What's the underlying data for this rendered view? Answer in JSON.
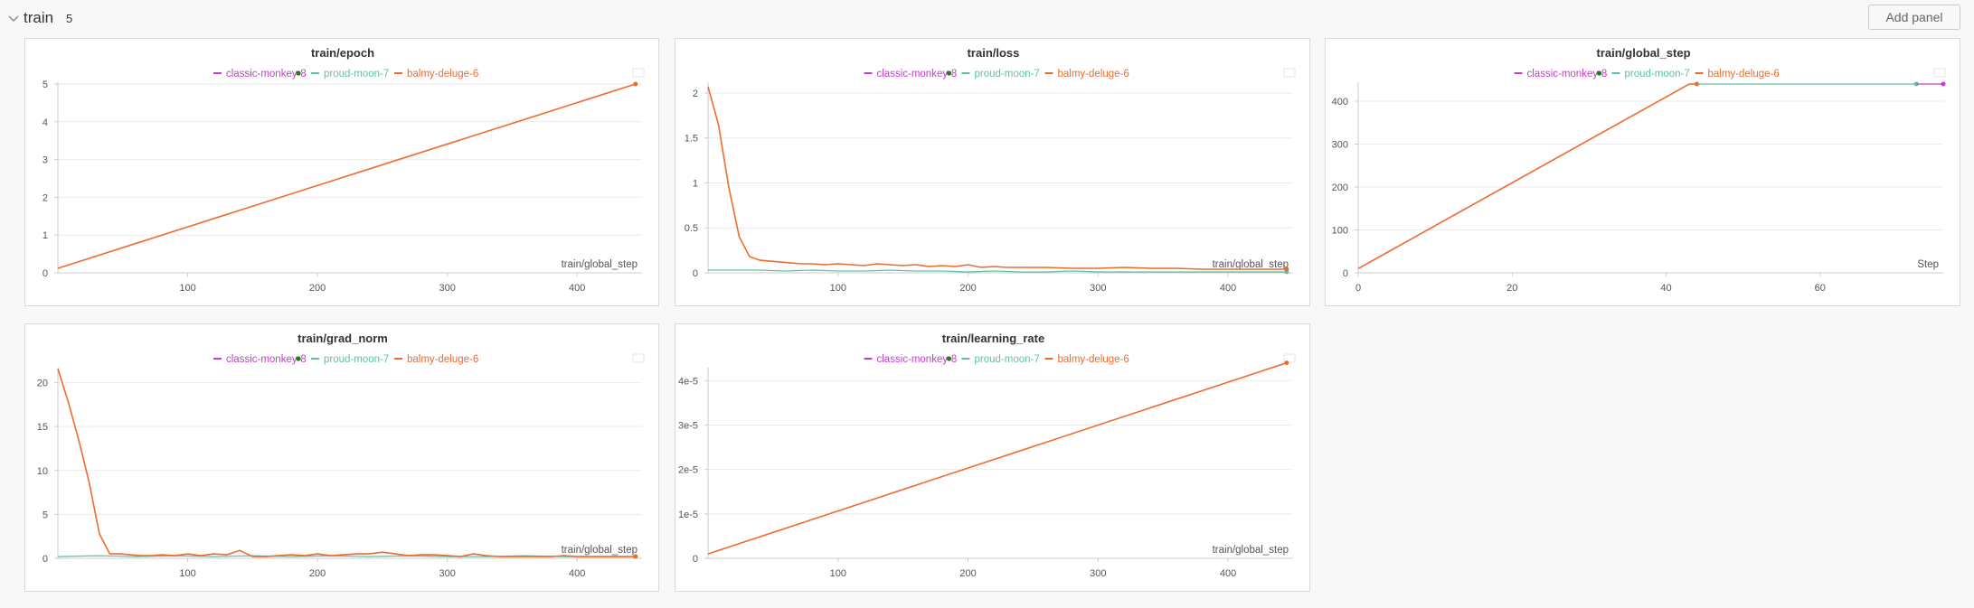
{
  "section": {
    "title": "train",
    "count": "5",
    "add_panel_label": "Add panel"
  },
  "colors": {
    "classic-monkey-8": "#c73bd1",
    "proud-moon-7": "#5fc0a8",
    "balmy-deluge-6": "#ee6b2f",
    "status_dot": "#1a7f1a"
  },
  "icons": {
    "collapse": "chevron-down-icon",
    "panel_menu": "panel-options-icon",
    "status": "running-dot-icon"
  },
  "panels": [
    {
      "title": "train/epoch",
      "legend": [
        "classic-monkey-8",
        "proud-moon-7",
        "balmy-deluge-6"
      ],
      "chart_data": {
        "type": "line",
        "xlabel": "train/global_step",
        "xlim": [
          0,
          450
        ],
        "ylim": [
          0,
          5
        ],
        "xticks": [
          100,
          200,
          300,
          400
        ],
        "yticks": [
          0,
          1,
          2,
          3,
          4,
          5
        ],
        "series": [
          {
            "name": "balmy-deluge-6",
            "x": [
              0,
              445
            ],
            "y": [
              0.12,
              5.0
            ]
          }
        ]
      }
    },
    {
      "title": "train/loss",
      "legend": [
        "classic-monkey-8",
        "proud-moon-7",
        "balmy-deluge-6"
      ],
      "chart_data": {
        "type": "line",
        "xlabel": "train/global_step",
        "xlim": [
          0,
          450
        ],
        "ylim": [
          0,
          2.1
        ],
        "xticks": [
          100,
          200,
          300,
          400
        ],
        "yticks": [
          0,
          0.5,
          1,
          1.5,
          2
        ],
        "series": [
          {
            "name": "proud-moon-7",
            "x": [
              0,
              20,
              40,
              60,
              80,
              100,
              120,
              140,
              160,
              180,
              200,
              220,
              240,
              260,
              280,
              300,
              320,
              340,
              360,
              380,
              400,
              420,
              445
            ],
            "y": [
              0.03,
              0.03,
              0.03,
              0.02,
              0.03,
              0.02,
              0.02,
              0.03,
              0.02,
              0.02,
              0.01,
              0.02,
              0.01,
              0.01,
              0.02,
              0.01,
              0.01,
              0.01,
              0.01,
              0.01,
              0.01,
              0.01,
              0.01
            ]
          },
          {
            "name": "balmy-deluge-6",
            "x": [
              0,
              8,
              16,
              24,
              32,
              40,
              48,
              56,
              64,
              72,
              80,
              90,
              100,
              110,
              120,
              130,
              140,
              150,
              160,
              170,
              180,
              190,
              200,
              210,
              220,
              230,
              240,
              260,
              280,
              300,
              320,
              340,
              360,
              380,
              400,
              420,
              445
            ],
            "y": [
              2.07,
              1.65,
              0.95,
              0.4,
              0.18,
              0.14,
              0.13,
              0.12,
              0.11,
              0.1,
              0.1,
              0.09,
              0.1,
              0.09,
              0.08,
              0.1,
              0.09,
              0.08,
              0.09,
              0.07,
              0.08,
              0.07,
              0.09,
              0.06,
              0.07,
              0.06,
              0.06,
              0.06,
              0.05,
              0.05,
              0.06,
              0.05,
              0.05,
              0.04,
              0.04,
              0.04,
              0.04
            ]
          }
        ]
      }
    },
    {
      "title": "train/global_step",
      "legend": [
        "classic-monkey-8",
        "proud-moon-7",
        "balmy-deluge-6"
      ],
      "chart_data": {
        "type": "line",
        "xlabel": "Step",
        "xlim": [
          0,
          76
        ],
        "ylim": [
          0,
          440
        ],
        "xticks": [
          0,
          20,
          40,
          60
        ],
        "yticks": [
          0,
          100,
          200,
          300,
          400
        ],
        "series": [
          {
            "name": "balmy-deluge-6",
            "x": [
              0,
              43,
              44
            ],
            "y": [
              10,
              440,
              440
            ]
          },
          {
            "name": "proud-moon-7",
            "x": [
              44,
              72.5
            ],
            "y": [
              440,
              440
            ]
          },
          {
            "name": "classic-monkey-8",
            "x": [
              72.5,
              76
            ],
            "y": [
              440,
              440
            ]
          }
        ]
      }
    },
    {
      "title": "train/grad_norm",
      "legend": [
        "classic-monkey-8",
        "proud-moon-7",
        "balmy-deluge-6"
      ],
      "chart_data": {
        "type": "line",
        "xlabel": "train/global_step",
        "xlim": [
          0,
          450
        ],
        "ylim": [
          0,
          21.5
        ],
        "xticks": [
          100,
          200,
          300,
          400
        ],
        "yticks": [
          0,
          5,
          10,
          15,
          20
        ],
        "series": [
          {
            "name": "proud-moon-7",
            "x": [
              0,
              30,
              60,
              90,
              120,
              150,
              180,
              210,
              240,
              270,
              300,
              330,
              360,
              390,
              420,
              445
            ],
            "y": [
              0.2,
              0.3,
              0.2,
              0.3,
              0.2,
              0.3,
              0.2,
              0.3,
              0.2,
              0.3,
              0.2,
              0.2,
              0.3,
              0.2,
              0.2,
              0.2
            ]
          },
          {
            "name": "balmy-deluge-6",
            "x": [
              0,
              8,
              16,
              24,
              32,
              40,
              48,
              56,
              64,
              72,
              80,
              90,
              100,
              110,
              120,
              130,
              140,
              150,
              160,
              170,
              180,
              190,
              200,
              210,
              220,
              230,
              240,
              250,
              260,
              270,
              280,
              290,
              300,
              310,
              320,
              330,
              340,
              350,
              360,
              370,
              380,
              390,
              400,
              410,
              420,
              430,
              445
            ],
            "y": [
              21.6,
              17.8,
              13.5,
              8.7,
              2.8,
              0.5,
              0.5,
              0.4,
              0.3,
              0.3,
              0.4,
              0.3,
              0.5,
              0.3,
              0.5,
              0.4,
              0.9,
              0.2,
              0.2,
              0.3,
              0.4,
              0.3,
              0.5,
              0.3,
              0.4,
              0.5,
              0.5,
              0.7,
              0.5,
              0.3,
              0.4,
              0.4,
              0.3,
              0.2,
              0.5,
              0.3,
              0.2,
              0.2,
              0.2,
              0.2,
              0.2,
              0.3,
              0.2,
              0.2,
              0.2,
              0.2,
              0.2
            ]
          }
        ]
      }
    },
    {
      "title": "train/learning_rate",
      "legend": [
        "classic-monkey-8",
        "proud-moon-7",
        "balmy-deluge-6"
      ],
      "chart_data": {
        "type": "line",
        "xlabel": "train/global_step",
        "xlim": [
          0,
          450
        ],
        "ylim": [
          0,
          4.25e-05
        ],
        "xticks": [
          100,
          200,
          300,
          400
        ],
        "yticks": [
          0,
          1e-05,
          2e-05,
          3e-05,
          4e-05
        ],
        "ytick_labels": [
          "0",
          "1e-5",
          "2e-5",
          "3e-5",
          "4e-5"
        ],
        "series": [
          {
            "name": "balmy-deluge-6",
            "x": [
              0,
              445
            ],
            "y": [
              1e-06,
              4.4e-05
            ]
          }
        ]
      }
    }
  ]
}
